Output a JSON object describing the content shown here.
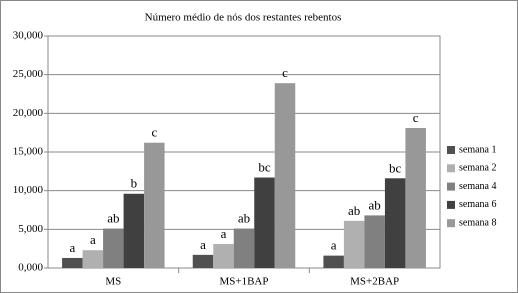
{
  "chart_data": {
    "type": "bar",
    "title": "Número médio de nós dos restantes rebentos",
    "categories": [
      "MS",
      "MS+1BAP",
      "MS+2BAP"
    ],
    "series": [
      {
        "name": "semana 1",
        "color": "#505050",
        "values": [
          1.3,
          1.7,
          1.6
        ],
        "significance": [
          "a",
          "a",
          "a"
        ]
      },
      {
        "name": "semana 2",
        "color": "#b0b0b0",
        "values": [
          2.3,
          3.1,
          6.1
        ],
        "significance": [
          "a",
          "a",
          "ab"
        ]
      },
      {
        "name": "semana 4",
        "color": "#808080",
        "values": [
          5.1,
          5.1,
          6.8
        ],
        "significance": [
          "ab",
          "ab",
          "ab"
        ]
      },
      {
        "name": "semana 6",
        "color": "#404040",
        "values": [
          9.6,
          11.7,
          11.6
        ],
        "significance": [
          "b",
          "bc",
          "bc"
        ]
      },
      {
        "name": "semana 8",
        "color": "#989898",
        "values": [
          16.2,
          23.9,
          18.1
        ],
        "significance": [
          "c",
          "c",
          "c"
        ]
      }
    ],
    "ylim": [
      0,
      30
    ],
    "yticks": [
      {
        "value": 0,
        "label": "0,000"
      },
      {
        "value": 5,
        "label": "5,000"
      },
      {
        "value": 10,
        "label": "10,000"
      },
      {
        "value": 15,
        "label": "15,000"
      },
      {
        "value": 20,
        "label": "20,000"
      },
      {
        "value": 25,
        "label": "25,000"
      },
      {
        "value": 30,
        "label": "30,000"
      }
    ],
    "grid": true,
    "legend": "right"
  }
}
